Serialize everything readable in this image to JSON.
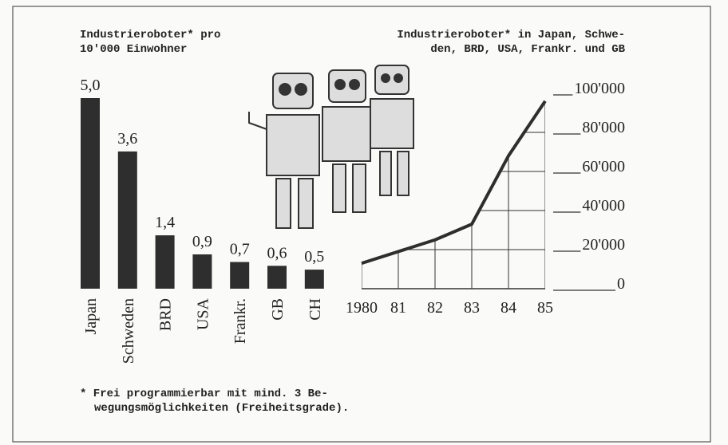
{
  "chart_data": [
    {
      "type": "bar",
      "title": [
        "Industrieroboter* pro",
        "10'000 Einwohner"
      ],
      "categories": [
        "Japan",
        "Schweden",
        "BRD",
        "USA",
        "Frankr.",
        "GB",
        "CH"
      ],
      "values": [
        5.0,
        3.6,
        1.4,
        0.9,
        0.7,
        0.6,
        0.5
      ],
      "value_labels": [
        "5,0",
        "3,6",
        "1,4",
        "0,9",
        "0,7",
        "0,6",
        "0,5"
      ],
      "color": "#2e2e2e",
      "footnote": [
        "* Frei programmierbar mit mind. 3 Be-",
        "wegungsmöglichkeiten (Freiheitsgrade)."
      ]
    },
    {
      "type": "line",
      "title": [
        "Industrieroboter* in Japan, Schwe-",
        "den, BRD, USA, Frankr. und GB"
      ],
      "categories": [
        "1980",
        "81",
        "82",
        "83",
        "84",
        "85"
      ],
      "series": [
        {
          "values": [
            13000,
            19000,
            25000,
            33000,
            68000,
            96000
          ],
          "color": "#2e2e2e"
        }
      ],
      "ylim": [
        0,
        100000
      ],
      "yticks": [
        0,
        {
          "value": 20000,
          "label": "20'000"
        },
        {
          "value": 40000,
          "label": "40'000"
        },
        {
          "value": 60000,
          "label": "60'000"
        },
        {
          "value": 80000,
          "label": "80'000"
        },
        {
          "value": 100000,
          "label": "100'000"
        }
      ],
      "grid": true
    }
  ]
}
